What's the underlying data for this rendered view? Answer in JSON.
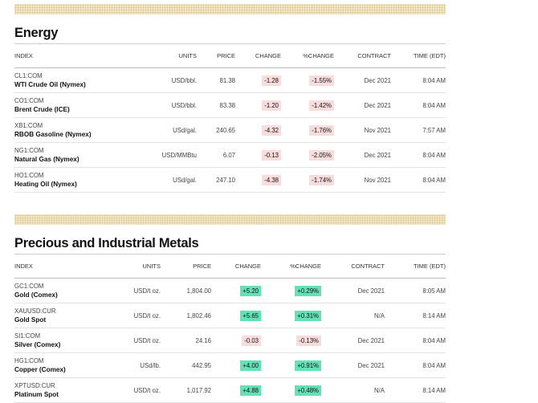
{
  "sections": [
    {
      "title": "Energy",
      "columns": [
        "INDEX",
        "UNITS",
        "PRICE",
        "CHANGE",
        "%CHANGE",
        "CONTRACT",
        "TIME (EDT)"
      ],
      "rows": [
        {
          "code": "CL1:COM",
          "name": "WTI Crude Oil (Nymex)",
          "units": "USD/bbl.",
          "price": "81.38",
          "change": "-1.28",
          "pct_change": "-1.55%",
          "contract": "Dec 2021",
          "time": "8:04 AM"
        },
        {
          "code": "CO1:COM",
          "name": "Brent Crude (ICE)",
          "units": "USD/bbl.",
          "price": "83.38",
          "change": "-1.20",
          "pct_change": "-1.42%",
          "contract": "Dec 2021",
          "time": "8:04 AM"
        },
        {
          "code": "XB1:COM",
          "name": "RBOB Gasoline (Nymex)",
          "units": "USd/gal.",
          "price": "240.65",
          "change": "-4.32",
          "pct_change": "-1.76%",
          "contract": "Nov 2021",
          "time": "7:57 AM"
        },
        {
          "code": "NG1:COM",
          "name": "Natural Gas (Nymex)",
          "units": "USD/MMBtu",
          "price": "6.07",
          "change": "-0.13",
          "pct_change": "-2.05%",
          "contract": "Dec 2021",
          "time": "8:04 AM"
        },
        {
          "code": "HO1:COM",
          "name": "Heating Oil (Nymex)",
          "units": "USd/gal.",
          "price": "247.10",
          "change": "-4.38",
          "pct_change": "-1.74%",
          "contract": "Nov 2021",
          "time": "8:04 AM"
        }
      ]
    },
    {
      "title": "Precious and Industrial Metals",
      "columns": [
        "INDEX",
        "UNITS",
        "PRICE",
        "CHANGE",
        "%CHANGE",
        "CONTRACT",
        "TIME (EDT)"
      ],
      "rows": [
        {
          "code": "GC1:COM",
          "name": "Gold (Comex)",
          "units": "USD/t oz.",
          "price": "1,804.00",
          "change": "+5.20",
          "pct_change": "+0.29%",
          "contract": "Dec 2021",
          "time": "8:05 AM"
        },
        {
          "code": "XAUUSD:CUR",
          "name": "Gold Spot",
          "units": "USD/t oz.",
          "price": "1,802.46",
          "change": "+5.65",
          "pct_change": "+0.31%",
          "contract": "N/A",
          "time": "8:14 AM"
        },
        {
          "code": "SI1:COM",
          "name": "Silver (Comex)",
          "units": "USD/t oz.",
          "price": "24.16",
          "change": "-0.03",
          "pct_change": "-0.13%",
          "contract": "Dec 2021",
          "time": "8:04 AM"
        },
        {
          "code": "HG1:COM",
          "name": "Copper (Comex)",
          "units": "USd/lb.",
          "price": "442.95",
          "change": "+4.00",
          "pct_change": "+0.91%",
          "contract": "Dec 2021",
          "time": "8:04 AM"
        },
        {
          "code": "XPTUSD:CUR",
          "name": "Platinum Spot",
          "units": "USD/t oz.",
          "price": "1,017.92",
          "change": "+4.88",
          "pct_change": "+0.48%",
          "contract": "N/A",
          "time": "8:14 AM"
        }
      ]
    }
  ]
}
